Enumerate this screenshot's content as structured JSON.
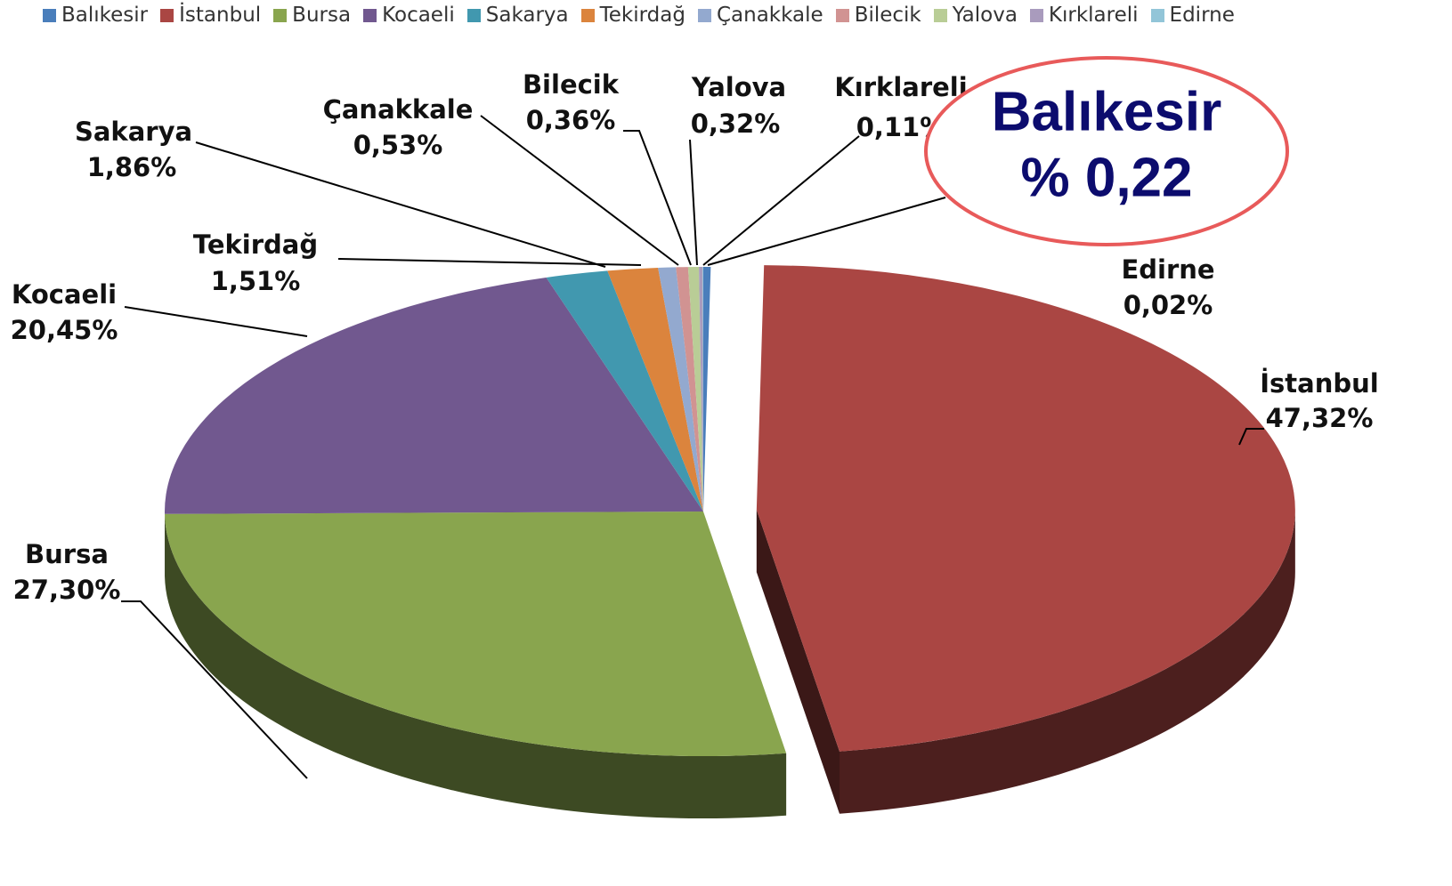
{
  "chart_data": {
    "type": "pie",
    "categories": [
      "Balıkesir",
      "İstanbul",
      "Bursa",
      "Kocaeli",
      "Sakarya",
      "Tekirdağ",
      "Çanakkale",
      "Bilecik",
      "Yalova",
      "Kırklareli",
      "Edirne"
    ],
    "values": [
      0.22,
      47.32,
      27.3,
      20.45,
      1.86,
      1.51,
      0.53,
      0.36,
      0.32,
      0.11,
      0.02
    ],
    "value_labels": [
      null,
      "47,32%",
      "27,30%",
      "20,45%",
      "1,86%",
      "1,51%",
      "0,53%",
      "0,36%",
      "0,32%",
      "0,11%",
      "0,02%"
    ],
    "colors": [
      "#4a7ebb",
      "#aa4643",
      "#89a54e",
      "#71588f",
      "#4198af",
      "#db843d",
      "#93a9cf",
      "#d19392",
      "#b9cd96",
      "#a99bbd",
      "#92c5d8"
    ],
    "annotation": {
      "title": "Balıkesir",
      "text": "% 0,22"
    },
    "legend": "top"
  }
}
